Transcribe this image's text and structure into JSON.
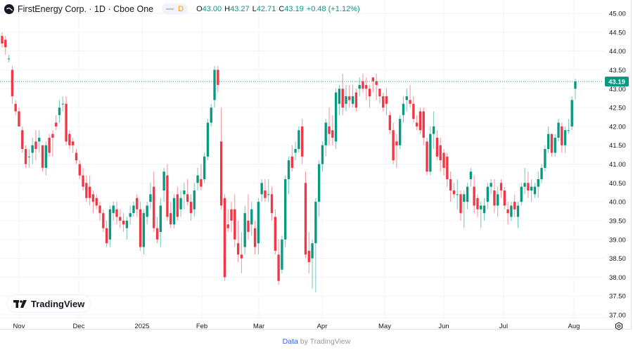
{
  "header": {
    "symbol_title": "FirstEnergy Corp. · 1D · Cboe One",
    "interval_badge": "D",
    "ohlc": {
      "open_label": "O",
      "open": "43.00",
      "high_label": "H",
      "high": "43.27",
      "low_label": "L",
      "low": "42.71",
      "close_label": "C",
      "close": "43.19",
      "change": "+0.48 (+1.12%)"
    }
  },
  "colors": {
    "up": "#089981",
    "down": "#f23645",
    "grid": "#f0f3fa",
    "text": "#131722",
    "price_line": "#089981"
  },
  "price_label": "43.19",
  "branding": {
    "logo_text": "TradingView"
  },
  "footer": {
    "data_link": "Data",
    "by_text": "by TradingView"
  },
  "chart_data": {
    "type": "candlestick",
    "title": "FirstEnergy Corp. · 1D · Cboe One",
    "xlabel": "",
    "ylabel": "",
    "ylim": [
      37.0,
      45.0
    ],
    "y_ticks": [
      "45.00",
      "44.50",
      "44.00",
      "43.50",
      "43.00",
      "42.50",
      "42.00",
      "41.50",
      "41.00",
      "40.50",
      "40.00",
      "39.50",
      "39.00",
      "38.50",
      "38.00",
      "37.50",
      "37.00"
    ],
    "x_ticks": [
      "Nov",
      "Dec",
      "2025",
      "Feb",
      "Mar",
      "Apr",
      "May",
      "Jun",
      "Jul",
      "Aug"
    ],
    "grid": true,
    "last_price": 43.19,
    "candles": [
      [
        44.4,
        44.5,
        44.1,
        44.2
      ],
      [
        44.3,
        44.4,
        43.9,
        44.1
      ],
      [
        43.8,
        43.9,
        43.7,
        43.8
      ],
      [
        43.5,
        43.6,
        42.6,
        42.8
      ],
      [
        42.6,
        42.7,
        42.3,
        42.4
      ],
      [
        42.4,
        42.5,
        42.0,
        42.0
      ],
      [
        41.9,
        42.0,
        41.3,
        41.4
      ],
      [
        41.4,
        41.5,
        40.9,
        41.0
      ],
      [
        41.2,
        41.4,
        40.9,
        41.2
      ],
      [
        41.3,
        41.7,
        41.0,
        41.5
      ],
      [
        41.6,
        41.9,
        41.1,
        41.4
      ],
      [
        41.6,
        41.9,
        41.3,
        41.7
      ],
      [
        41.5,
        41.5,
        40.8,
        40.9
      ],
      [
        40.9,
        41.6,
        40.7,
        41.5
      ],
      [
        41.7,
        41.8,
        41.2,
        41.3
      ],
      [
        41.8,
        41.9,
        41.2,
        41.7
      ],
      [
        42.1,
        42.3,
        41.9,
        42.0
      ],
      [
        42.3,
        42.7,
        42.1,
        42.5
      ],
      [
        42.6,
        42.8,
        42.4,
        42.6
      ],
      [
        42.6,
        42.8,
        41.5,
        41.6
      ],
      [
        41.8,
        41.9,
        41.4,
        41.5
      ],
      [
        41.6,
        41.7,
        41.3,
        41.5
      ],
      [
        41.3,
        41.4,
        41.0,
        41.1
      ],
      [
        41.0,
        41.1,
        40.6,
        40.7
      ],
      [
        40.7,
        40.9,
        40.3,
        40.4
      ],
      [
        40.5,
        40.7,
        40.0,
        40.1
      ],
      [
        40.4,
        40.7,
        39.9,
        40.1
      ],
      [
        40.2,
        40.3,
        39.7,
        40.0
      ],
      [
        40.1,
        40.2,
        39.8,
        39.9
      ],
      [
        39.9,
        40.0,
        39.5,
        39.7
      ],
      [
        39.7,
        39.8,
        39.2,
        39.3
      ],
      [
        39.3,
        39.5,
        38.8,
        38.9
      ],
      [
        39.0,
        39.9,
        38.8,
        39.8
      ],
      [
        39.7,
        40.0,
        39.5,
        39.9
      ],
      [
        39.8,
        40.0,
        39.4,
        39.6
      ],
      [
        39.6,
        39.8,
        39.3,
        39.5
      ],
      [
        39.5,
        39.7,
        39.2,
        39.4
      ],
      [
        39.3,
        39.6,
        39.0,
        39.5
      ],
      [
        39.6,
        39.9,
        39.4,
        39.7
      ],
      [
        39.7,
        40.0,
        39.6,
        39.9
      ],
      [
        40.1,
        40.2,
        39.6,
        39.8
      ],
      [
        39.8,
        40.0,
        38.7,
        38.8
      ],
      [
        38.8,
        39.8,
        38.6,
        39.7
      ],
      [
        39.6,
        40.0,
        39.4,
        39.9
      ],
      [
        40.0,
        40.5,
        39.8,
        40.2
      ],
      [
        40.4,
        40.8,
        39.2,
        39.3
      ],
      [
        39.3,
        39.6,
        38.9,
        39.0
      ],
      [
        39.2,
        40.1,
        38.8,
        39.9
      ],
      [
        40.3,
        40.9,
        40.0,
        40.8
      ],
      [
        40.7,
        41.0,
        39.5,
        39.6
      ],
      [
        39.7,
        40.0,
        39.3,
        39.4
      ],
      [
        39.4,
        40.2,
        39.3,
        40.1
      ],
      [
        40.2,
        40.4,
        39.5,
        39.6
      ],
      [
        39.8,
        40.3,
        39.6,
        40.1
      ],
      [
        40.2,
        40.5,
        39.8,
        40.3
      ],
      [
        40.2,
        40.6,
        39.9,
        40.0
      ],
      [
        40.0,
        40.2,
        39.5,
        39.7
      ],
      [
        39.8,
        40.5,
        39.6,
        40.3
      ],
      [
        40.5,
        40.9,
        40.3,
        40.7
      ],
      [
        40.6,
        41.0,
        40.3,
        40.4
      ],
      [
        40.6,
        41.3,
        40.5,
        41.2
      ],
      [
        41.2,
        42.2,
        41.1,
        42.1
      ],
      [
        42.1,
        42.6,
        42.0,
        42.5
      ],
      [
        42.7,
        43.6,
        42.5,
        43.5
      ],
      [
        43.5,
        43.6,
        42.9,
        43.1
      ],
      [
        41.6,
        42.5,
        39.8,
        39.9
      ],
      [
        40.1,
        40.2,
        37.9,
        38.0
      ],
      [
        39.4,
        39.8,
        39.2,
        39.3
      ],
      [
        39.8,
        40.0,
        39.2,
        39.5
      ],
      [
        39.8,
        40.2,
        38.8,
        39.0
      ],
      [
        38.9,
        39.5,
        38.4,
        38.6
      ],
      [
        38.6,
        39.2,
        38.1,
        38.5
      ],
      [
        38.8,
        39.9,
        38.6,
        39.7
      ],
      [
        39.5,
        40.2,
        39.0,
        39.2
      ],
      [
        39.4,
        40.0,
        39.1,
        39.8
      ],
      [
        39.3,
        39.5,
        38.6,
        38.8
      ],
      [
        38.9,
        40.1,
        38.6,
        40.0
      ],
      [
        40.2,
        40.6,
        40.0,
        40.5
      ],
      [
        40.3,
        40.6,
        40.0,
        40.1
      ],
      [
        40.2,
        40.6,
        40.0,
        40.2
      ],
      [
        40.2,
        40.4,
        39.5,
        39.7
      ],
      [
        39.6,
        39.8,
        38.6,
        38.7
      ],
      [
        38.6,
        39.0,
        37.8,
        37.9
      ],
      [
        38.2,
        39.1,
        38.1,
        39.0
      ],
      [
        39.0,
        40.7,
        38.8,
        40.6
      ],
      [
        40.6,
        41.2,
        40.2,
        41.1
      ],
      [
        41.2,
        41.5,
        40.8,
        40.9
      ],
      [
        41.3,
        41.6,
        41.1,
        41.4
      ],
      [
        41.4,
        42.0,
        41.3,
        41.9
      ],
      [
        42.0,
        42.2,
        41.0,
        41.2
      ],
      [
        40.5,
        40.8,
        38.5,
        38.6
      ],
      [
        38.7,
        39.2,
        38.1,
        38.4
      ],
      [
        38.5,
        39.0,
        37.7,
        38.9
      ],
      [
        38.9,
        40.1,
        37.6,
        40.0
      ],
      [
        40.0,
        41.1,
        39.6,
        41.0
      ],
      [
        41.0,
        41.6,
        40.8,
        41.5
      ],
      [
        41.5,
        42.2,
        41.2,
        42.1
      ],
      [
        42.0,
        42.5,
        41.5,
        41.8
      ],
      [
        41.9,
        42.3,
        41.5,
        41.7
      ],
      [
        41.6,
        43.0,
        41.4,
        42.9
      ],
      [
        42.6,
        43.1,
        42.3,
        43.0
      ],
      [
        43.0,
        43.4,
        42.3,
        42.5
      ],
      [
        42.6,
        43.1,
        42.4,
        42.8
      ],
      [
        42.8,
        43.1,
        42.5,
        42.7
      ],
      [
        42.6,
        43.1,
        42.5,
        42.8
      ],
      [
        42.9,
        43.0,
        42.4,
        42.5
      ],
      [
        43.0,
        43.3,
        42.8,
        43.1
      ],
      [
        43.2,
        43.4,
        42.9,
        43.0
      ],
      [
        43.1,
        43.3,
        42.7,
        43.0
      ],
      [
        43.0,
        43.1,
        42.5,
        42.8
      ],
      [
        43.3,
        43.3,
        42.9,
        43.2
      ],
      [
        43.2,
        43.4,
        42.7,
        43.1
      ],
      [
        43.0,
        43.0,
        42.6,
        42.8
      ],
      [
        42.8,
        42.9,
        42.4,
        42.5
      ],
      [
        42.8,
        43.0,
        42.3,
        42.6
      ],
      [
        42.3,
        42.4,
        41.8,
        41.9
      ],
      [
        41.9,
        42.1,
        41.0,
        41.1
      ],
      [
        41.6,
        41.8,
        40.9,
        41.5
      ],
      [
        41.5,
        42.3,
        41.4,
        42.2
      ],
      [
        42.3,
        42.8,
        42.1,
        42.6
      ],
      [
        42.7,
        43.0,
        42.4,
        42.8
      ],
      [
        42.7,
        43.1,
        42.5,
        42.6
      ],
      [
        42.6,
        42.8,
        42.1,
        42.2
      ],
      [
        42.1,
        42.3,
        41.9,
        42.0
      ],
      [
        42.4,
        42.5,
        41.8,
        41.9
      ],
      [
        42.4,
        42.5,
        41.5,
        41.7
      ],
      [
        41.6,
        41.7,
        40.7,
        40.8
      ],
      [
        40.8,
        42.0,
        40.7,
        41.8
      ],
      [
        41.8,
        42.4,
        41.4,
        42.0
      ],
      [
        41.7,
        41.9,
        41.1,
        41.2
      ],
      [
        41.5,
        41.7,
        40.8,
        41.1
      ],
      [
        41.3,
        41.4,
        40.7,
        40.9
      ],
      [
        41.2,
        41.3,
        40.4,
        40.6
      ],
      [
        40.6,
        40.8,
        40.0,
        40.3
      ],
      [
        40.3,
        40.5,
        40.1,
        40.2
      ],
      [
        40.2,
        40.6,
        39.8,
        40.2
      ],
      [
        40.2,
        40.3,
        39.5,
        39.7
      ],
      [
        40.0,
        40.3,
        39.3,
        40.2
      ],
      [
        40.0,
        40.5,
        39.8,
        40.4
      ],
      [
        40.6,
        40.9,
        40.4,
        40.8
      ],
      [
        40.4,
        40.7,
        39.7,
        39.9
      ],
      [
        40.1,
        40.2,
        39.6,
        39.8
      ],
      [
        39.8,
        40.0,
        39.3,
        39.9
      ],
      [
        39.7,
        40.1,
        39.5,
        39.9
      ],
      [
        40.0,
        40.5,
        39.8,
        40.4
      ],
      [
        40.4,
        40.6,
        40.2,
        40.5
      ],
      [
        40.3,
        40.6,
        39.7,
        39.9
      ],
      [
        39.9,
        40.4,
        39.6,
        40.2
      ],
      [
        40.5,
        40.6,
        40.1,
        40.3
      ],
      [
        40.3,
        40.4,
        39.8,
        39.9
      ],
      [
        39.8,
        40.0,
        39.4,
        39.7
      ],
      [
        39.6,
        40.0,
        39.5,
        39.9
      ],
      [
        40.0,
        40.2,
        39.6,
        39.8
      ],
      [
        39.6,
        40.0,
        39.3,
        39.9
      ],
      [
        40.0,
        40.5,
        39.9,
        40.4
      ],
      [
        40.4,
        40.9,
        40.2,
        40.5
      ],
      [
        40.5,
        40.8,
        40.1,
        40.3
      ],
      [
        40.3,
        40.6,
        40.0,
        40.4
      ],
      [
        40.2,
        40.5,
        40.1,
        40.4
      ],
      [
        40.4,
        40.8,
        40.1,
        40.6
      ],
      [
        40.6,
        41.0,
        40.5,
        40.9
      ],
      [
        40.9,
        41.5,
        40.8,
        41.4
      ],
      [
        41.4,
        42.0,
        41.3,
        41.8
      ],
      [
        41.8,
        41.8,
        41.2,
        41.3
      ],
      [
        41.3,
        41.8,
        41.2,
        41.7
      ],
      [
        41.7,
        42.2,
        41.6,
        42.1
      ],
      [
        42.0,
        42.1,
        41.3,
        41.5
      ],
      [
        41.5,
        42.0,
        41.3,
        41.9
      ],
      [
        41.9,
        42.2,
        41.8,
        41.9
      ],
      [
        42.0,
        42.8,
        41.9,
        42.7
      ],
      [
        43.0,
        43.27,
        42.71,
        43.19
      ]
    ]
  }
}
